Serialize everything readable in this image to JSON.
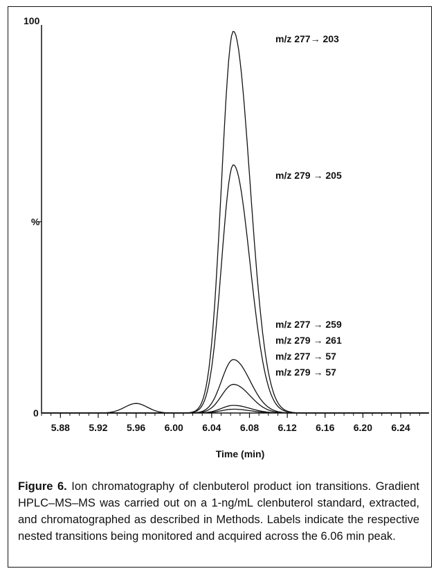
{
  "chart_data": {
    "type": "line",
    "title": "",
    "xlabel": "Time (min)",
    "ylabel": "%",
    "xlim": [
      5.86,
      6.27
    ],
    "ylim": [
      0,
      100
    ],
    "y_ticks": [
      "0",
      "100"
    ],
    "x_ticks": [
      "5.88",
      "5.92",
      "5.96",
      "6.00",
      "6.04",
      "6.08",
      "6.12",
      "6.16",
      "6.20",
      "6.24"
    ],
    "peak_time": 6.063,
    "series": [
      {
        "name": "m/z 277→ 203",
        "peak_height": 100,
        "minor_peak": [
          5.96,
          2.5
        ]
      },
      {
        "name": "m/z 279 → 205",
        "peak_height": 65
      },
      {
        "name": "m/z 277 → 259",
        "peak_height": 14
      },
      {
        "name": "m/z 279 → 261",
        "peak_height": 7.5
      },
      {
        "name": "m/z 277 → 57",
        "peak_height": 2
      },
      {
        "name": "m/z 279 → 57",
        "peak_height": 1
      }
    ]
  },
  "caption": {
    "label": "Figure 6.",
    "text": " Ion chromatography of clenbuterol product ion transitions. Gradient HPLC–MS–MS was carried out on a 1-ng/mL clenbuterol standard, extracted, and chromatographed as described in Methods. Labels indicate the respective nested transitions being monitored and acquired across the 6.06 min peak."
  }
}
